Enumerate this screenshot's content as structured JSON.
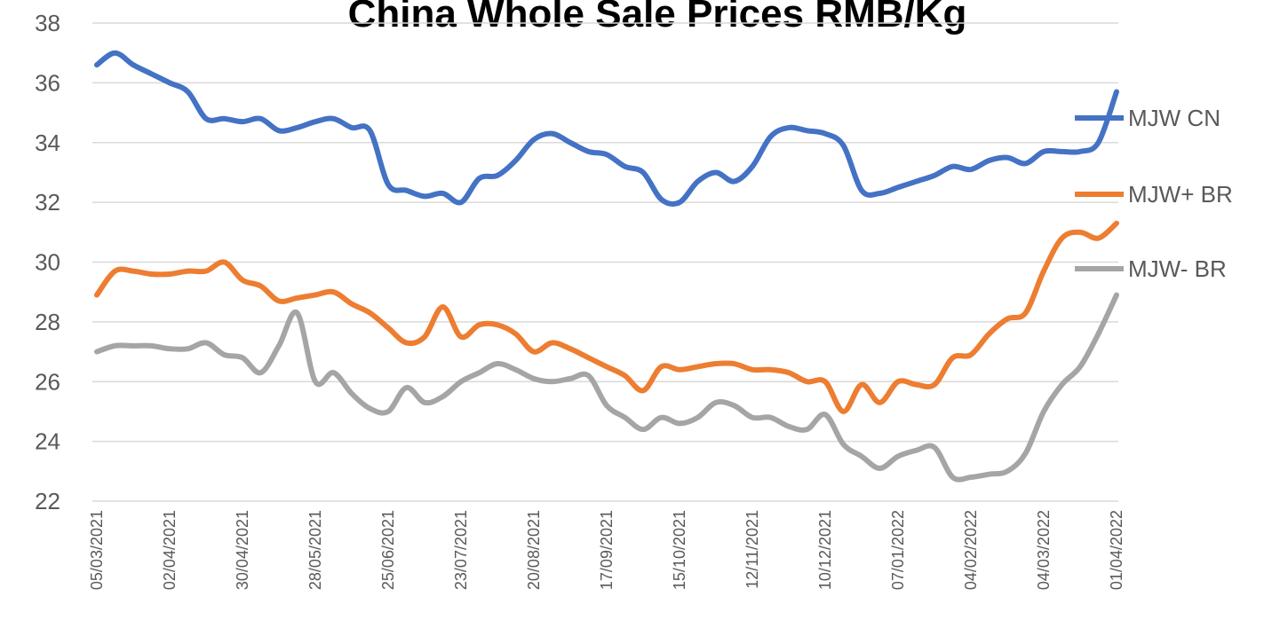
{
  "chart_data": {
    "type": "line",
    "title": "China Whole Sale Prices RMB/Kg",
    "categories": [
      "05/03/2021",
      null,
      null,
      null,
      "02/04/2021",
      null,
      null,
      null,
      "30/04/2021",
      null,
      null,
      null,
      "28/05/2021",
      null,
      null,
      null,
      "25/06/2021",
      null,
      null,
      null,
      "23/07/2021",
      null,
      null,
      null,
      "20/08/2021",
      null,
      null,
      null,
      "17/09/2021",
      null,
      null,
      null,
      "15/10/2021",
      null,
      null,
      null,
      "12/11/2021",
      null,
      null,
      null,
      "10/12/2021",
      null,
      null,
      null,
      "07/01/2022",
      null,
      null,
      null,
      "04/02/2022",
      null,
      null,
      null,
      "04/03/2022",
      null,
      null,
      null,
      "01/04/2022"
    ],
    "series": [
      {
        "name": "MJW CN",
        "color": "#4472c4",
        "values": [
          36.6,
          37.0,
          36.6,
          36.3,
          36.0,
          35.7,
          34.8,
          34.8,
          34.7,
          34.8,
          34.4,
          34.5,
          34.7,
          34.8,
          34.5,
          34.4,
          32.6,
          32.4,
          32.2,
          32.3,
          32.0,
          32.8,
          32.9,
          33.4,
          34.1,
          34.3,
          34.0,
          33.7,
          33.6,
          33.2,
          33.0,
          32.1,
          32.0,
          32.7,
          33.0,
          32.7,
          33.2,
          34.2,
          34.5,
          34.4,
          34.3,
          33.9,
          32.4,
          32.3,
          32.5,
          32.7,
          32.9,
          33.2,
          33.1,
          33.4,
          33.5,
          33.3,
          33.7,
          33.7,
          33.7,
          34.0,
          35.7
        ]
      },
      {
        "name": "MJW+ BR",
        "color": "#ed7d31",
        "values": [
          28.9,
          29.7,
          29.7,
          29.6,
          29.6,
          29.7,
          29.7,
          30.0,
          29.4,
          29.2,
          28.7,
          28.8,
          28.9,
          29.0,
          28.6,
          28.3,
          27.8,
          27.3,
          27.5,
          28.5,
          27.5,
          27.9,
          27.9,
          27.6,
          27.0,
          27.3,
          27.1,
          26.8,
          26.5,
          26.2,
          25.7,
          26.5,
          26.4,
          26.5,
          26.6,
          26.6,
          26.4,
          26.4,
          26.3,
          26.0,
          26.0,
          25.0,
          25.9,
          25.3,
          26.0,
          25.9,
          25.9,
          26.8,
          26.9,
          27.6,
          28.1,
          28.3,
          29.7,
          30.8,
          31.0,
          30.8,
          31.3
        ]
      },
      {
        "name": "MJW- BR",
        "color": "#a5a5a5",
        "values": [
          27.0,
          27.2,
          27.2,
          27.2,
          27.1,
          27.1,
          27.3,
          26.9,
          26.8,
          26.3,
          27.2,
          28.3,
          26.0,
          26.3,
          25.6,
          25.1,
          25.0,
          25.8,
          25.3,
          25.5,
          26.0,
          26.3,
          26.6,
          26.4,
          26.1,
          26.0,
          26.1,
          26.2,
          25.2,
          24.8,
          24.4,
          24.8,
          24.6,
          24.8,
          25.3,
          25.2,
          24.8,
          24.8,
          24.5,
          24.4,
          24.9,
          23.9,
          23.5,
          23.1,
          23.5,
          23.7,
          23.8,
          22.8,
          22.8,
          22.9,
          23.0,
          23.6,
          25.0,
          25.9,
          26.5,
          27.6,
          28.9
        ]
      }
    ],
    "ylim": [
      22,
      38
    ],
    "yticks": [
      22,
      24,
      26,
      28,
      30,
      32,
      34,
      36,
      38
    ],
    "grid": true,
    "legend": "right"
  }
}
